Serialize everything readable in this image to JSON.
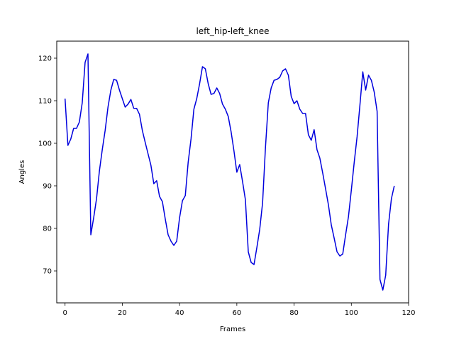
{
  "chart_data": {
    "type": "line",
    "title": "left_hip-left_knee",
    "xlabel": "Frames",
    "ylabel": "Angles",
    "xlim": [
      -2.9,
      120
    ],
    "ylim": [
      62.5,
      124
    ],
    "xticks": [
      0,
      20,
      40,
      60,
      80,
      100,
      120
    ],
    "yticks": [
      70,
      80,
      90,
      100,
      110,
      120
    ],
    "grid": false,
    "legend": "none",
    "line_color": "#0000dd",
    "series": [
      {
        "x": [
          0,
          1,
          2,
          3,
          4,
          5,
          6,
          7,
          8,
          9,
          10,
          11,
          12,
          13,
          14,
          15,
          16,
          17,
          18,
          19,
          20,
          21,
          22,
          23,
          24,
          25,
          26,
          27,
          28,
          29,
          30,
          31,
          32,
          33,
          34,
          35,
          36,
          37,
          38,
          39,
          40,
          41,
          42,
          43,
          44,
          45,
          46,
          47,
          48,
          49,
          50,
          51,
          52,
          53,
          54,
          55,
          56,
          57,
          58,
          59,
          60,
          61,
          62,
          63,
          64,
          65,
          66,
          67,
          68,
          69,
          70,
          71,
          72,
          73,
          74,
          75,
          76,
          77,
          78,
          79,
          80,
          81,
          82,
          83,
          84,
          85,
          86,
          87,
          88,
          89,
          90,
          91,
          92,
          93,
          94,
          95,
          96,
          97,
          98,
          99,
          100,
          101,
          102,
          103,
          104,
          105,
          106,
          107,
          108,
          109,
          110,
          111,
          112,
          113,
          114,
          115
        ],
        "y": [
          110.5,
          99.5,
          101,
          103.5,
          103.5,
          105,
          109.5,
          119,
          121,
          78.5,
          82.5,
          87,
          93.5,
          98.5,
          103,
          108.5,
          112.5,
          115,
          114.8,
          112.5,
          110.5,
          108.5,
          109.2,
          110.3,
          108.2,
          108.2,
          106.8,
          103,
          100.2,
          97.5,
          94.8,
          90.5,
          91.2,
          87.5,
          86.3,
          82.2,
          78.5,
          77,
          76,
          77,
          82.5,
          86.5,
          87.7,
          95.5,
          101,
          108,
          110.5,
          114,
          118,
          117.5,
          114,
          111.5,
          111.7,
          113,
          111.7,
          109.2,
          108,
          106.3,
          102.7,
          98.2,
          93.2,
          95,
          91,
          86.7,
          74.5,
          72,
          71.5,
          75.5,
          79.8,
          86,
          99,
          109.5,
          113,
          114.8,
          115,
          115.5,
          117,
          117.5,
          116,
          111,
          109.3,
          110,
          108,
          107,
          107,
          102,
          100.7,
          103.2,
          98.5,
          96.5,
          93,
          89.3,
          85.5,
          80.8,
          77.7,
          74.5,
          73.5,
          74,
          78.5,
          82.8,
          89,
          95.5,
          101.5,
          109,
          116.8,
          112.5,
          116,
          114.8,
          112,
          107.5,
          68,
          65.5,
          69,
          81,
          87,
          90
        ]
      }
    ]
  }
}
